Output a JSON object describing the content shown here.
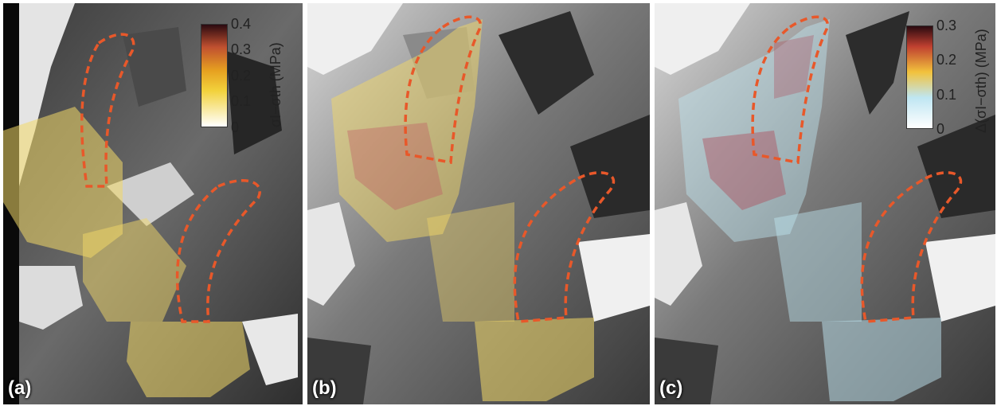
{
  "panels": [
    {
      "label": "(a)",
      "colorbar": {
        "title": "σI−σth (MPa)",
        "ticks": [
          "0.4",
          "0.3",
          "0.2",
          "0.1",
          "0"
        ],
        "colors": [
          "#ffffff",
          "#f2d23c",
          "#e6a020",
          "#c05030",
          "#2a0a10"
        ]
      }
    },
    {
      "label": "(b)"
    },
    {
      "label": "(c)",
      "colorbar": {
        "title": "Δ(σI−σth) (MPa)",
        "ticks": [
          "0.3",
          "0.2",
          "0.1",
          "0"
        ],
        "colors": [
          "#ffffff",
          "#bfe6f2",
          "#f2c23c",
          "#c04030",
          "#2a0a10"
        ]
      }
    }
  ],
  "outline_color": "#e8582a"
}
